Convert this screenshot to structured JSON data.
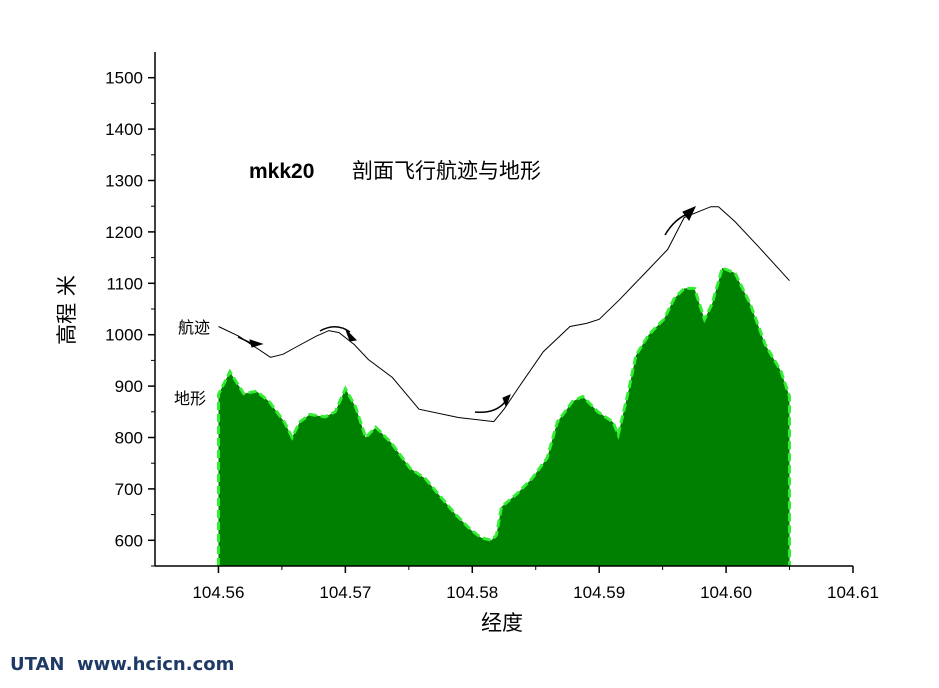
{
  "chart_data": {
    "type": "area",
    "title_code": "mkk20",
    "title": "剖面飞行航迹与地形",
    "xlabel": "经度",
    "ylabel": "高程  米",
    "xlim": [
      104.555,
      104.61
    ],
    "ylim": [
      550,
      1550
    ],
    "x_ticks": [
      "104.56",
      "104.57",
      "104.58",
      "104.59",
      "104.60",
      "104.61"
    ],
    "y_ticks": [
      "600",
      "700",
      "800",
      "900",
      "1000",
      "1100",
      "1200",
      "1300",
      "1400",
      "1500"
    ],
    "grid": false,
    "annotations": {
      "track": "航迹",
      "terrain": "地形"
    },
    "colors": {
      "terrain_fill": "#008000",
      "terrain_edge": "#33ee33",
      "track": "#000000"
    },
    "series": [
      {
        "name": "航迹",
        "kind": "line",
        "x": [
          104.56,
          104.5616,
          104.5641,
          104.5651,
          104.5662,
          104.5677,
          104.5687,
          104.5695,
          104.5707,
          104.5718,
          104.5737,
          104.5758,
          104.5789,
          104.5817,
          104.5825,
          104.5837,
          104.5856,
          104.5877,
          104.589,
          104.59,
          104.5916,
          104.5935,
          104.5954,
          104.5967,
          104.5979,
          104.5988,
          104.5994,
          104.6007,
          104.6026,
          104.605
        ],
        "y": [
          1016,
          997,
          956,
          962,
          977,
          997,
          1008,
          1004,
          981,
          952,
          917,
          855,
          839,
          831,
          855,
          899,
          967,
          1016,
          1022,
          1030,
          1068,
          1117,
          1166,
          1228,
          1240,
          1249,
          1249,
          1220,
          1170,
          1105
        ]
      },
      {
        "name": "地形",
        "kind": "area",
        "x": [
          104.56,
          104.5609,
          104.562,
          104.563,
          104.564,
          104.5652,
          104.5658,
          104.5664,
          104.5672,
          104.5684,
          104.5692,
          104.57,
          104.5708,
          104.5716,
          104.5724,
          104.5736,
          104.5751,
          104.5763,
          104.5775,
          104.5787,
          104.5799,
          104.5807,
          104.5815,
          104.5819,
          104.5823,
          104.5835,
          104.5847,
          104.5859,
          104.5867,
          104.5879,
          104.5887,
          104.5899,
          104.5911,
          104.5915,
          104.5923,
          104.5929,
          104.5939,
          104.5951,
          104.5959,
          104.5967,
          104.5975,
          104.5983,
          104.5989,
          104.5997,
          104.6007,
          104.6019,
          104.6031,
          104.6043,
          104.605
        ],
        "y": [
          884,
          928,
          885,
          890,
          870,
          830,
          800,
          830,
          845,
          840,
          850,
          895,
          860,
          800,
          820,
          790,
          740,
          720,
          685,
          650,
          620,
          605,
          600,
          610,
          665,
          690,
          720,
          760,
          830,
          870,
          880,
          850,
          830,
          805,
          890,
          960,
          1000,
          1030,
          1070,
          1090,
          1090,
          1030,
          1060,
          1130,
          1120,
          1060,
          980,
          930,
          880
        ]
      }
    ]
  },
  "watermark": "UTAN  www.hcicn.com"
}
